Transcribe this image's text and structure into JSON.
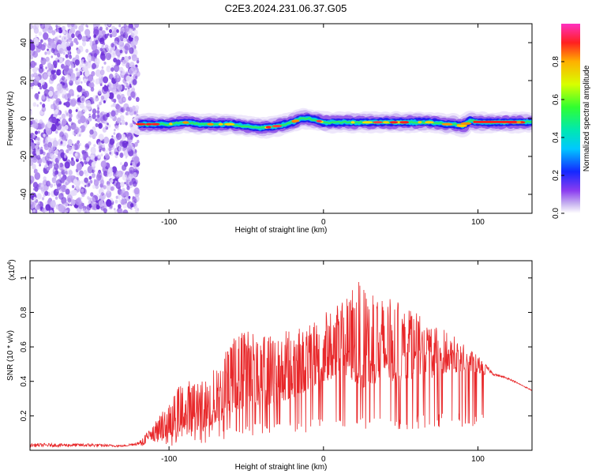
{
  "title": "C2E3.2024.231.06.37.G05",
  "chart_data": [
    {
      "type": "heatmap",
      "xlabel": "Height of straight line (km)",
      "ylabel": "Frequency (Hz)",
      "xlim": [
        -190,
        135
      ],
      "ylim": [
        -50,
        50
      ],
      "xticks": [
        -100,
        0,
        100
      ],
      "yticks": [
        -40,
        -20,
        0,
        20,
        40
      ],
      "colorbar": {
        "label": "Normalized spectral amplitude",
        "range": [
          0,
          1
        ],
        "ticks": [
          "0.0",
          "0.2",
          "0.4",
          "0.6",
          "0.8"
        ],
        "tick_values": [
          0,
          0.2,
          0.4,
          0.6,
          0.8
        ]
      },
      "noise_region_xlim": [
        -190,
        -120
      ],
      "ridge": {
        "x": [
          -120,
          -110,
          -100,
          -90,
          -80,
          -70,
          -60,
          -50,
          -40,
          -30,
          -20,
          -15,
          -10,
          -5,
          0,
          5,
          10,
          20,
          30,
          40,
          50,
          60,
          70,
          80,
          85,
          90,
          95,
          100,
          110,
          120,
          135
        ],
        "freq": [
          -3,
          -3,
          -3,
          -2,
          -3,
          -3,
          -3,
          -4,
          -5,
          -4,
          -2,
          0,
          0,
          -1,
          -2,
          -2,
          -2,
          -2,
          -2,
          -2,
          -2,
          -2,
          -2,
          -3,
          -3,
          -4,
          -1,
          -2,
          -2,
          -2,
          -2
        ]
      }
    },
    {
      "type": "line",
      "xlabel": "Height of straight line (km)",
      "ylabel": "SNR (10 * v/v)",
      "multiplier_label": "(x10",
      "multiplier_exp": "4",
      "multiplier_close": ")",
      "xlim": [
        -190,
        135
      ],
      "ylim": [
        0,
        1.1
      ],
      "xticks": [
        -100,
        0,
        100
      ],
      "yticks": [
        0.2,
        0.4,
        0.6,
        0.8,
        1
      ],
      "ytick_labels": [
        "0.2",
        "0.4",
        "0.6",
        "0.8",
        "1"
      ],
      "color": "#e8282a",
      "envelope_x": [
        -190,
        -150,
        -130,
        -120,
        -110,
        -100,
        -90,
        -80,
        -70,
        -60,
        -50,
        -40,
        -30,
        -20,
        -10,
        0,
        10,
        20,
        25,
        30,
        40,
        50,
        60,
        70,
        80,
        90,
        100,
        110,
        120,
        135
      ],
      "envelope_y": [
        0.04,
        0.04,
        0.03,
        0.05,
        0.15,
        0.28,
        0.42,
        0.4,
        0.48,
        0.65,
        0.72,
        0.68,
        0.72,
        0.7,
        0.72,
        0.8,
        0.85,
        0.95,
        1.0,
        0.92,
        0.9,
        0.85,
        0.8,
        0.72,
        0.7,
        0.62,
        0.55,
        0.45,
        0.42,
        0.35
      ],
      "baseline_y": [
        0.02,
        0.02,
        0.02,
        0.03,
        0.05,
        0.08,
        0.12,
        0.12,
        0.15,
        0.2,
        0.25,
        0.25,
        0.28,
        0.3,
        0.35,
        0.4,
        0.42,
        0.4,
        0.35,
        0.38,
        0.4,
        0.4,
        0.42,
        0.42,
        0.45,
        0.45,
        0.45,
        0.42,
        0.4,
        0.34
      ]
    }
  ]
}
